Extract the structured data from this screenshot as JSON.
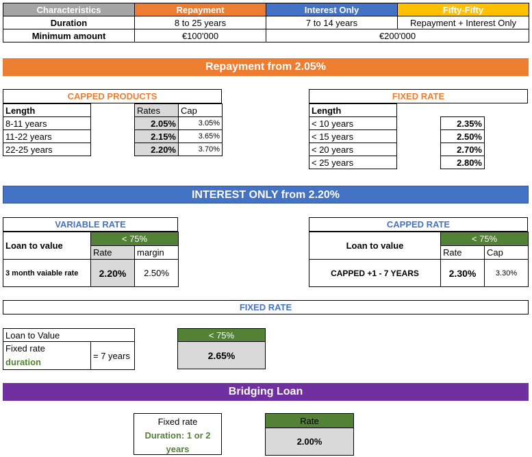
{
  "top_table": {
    "headers": [
      "Characteristics",
      "Repayment",
      "Interest Only",
      "Fifty-Fifty"
    ],
    "duration_label": "Duration",
    "duration_values": [
      "8 to 25 years",
      "7 to 14 years",
      "Repayment + Interest Only"
    ],
    "min_label": "Minimum amount",
    "min_repayment": "€100'000",
    "min_other": "€200'000"
  },
  "repayment_banner": "Repayment from 2.05%",
  "capped_products": {
    "title": "CAPPED PRODUCTS",
    "col_length": "Length",
    "col_rates": "Rates",
    "col_cap": "Cap",
    "rows": [
      {
        "length": "8-11 years",
        "rate": "2.05%",
        "cap": "3.05%"
      },
      {
        "length": "11-22 years",
        "rate": "2.15%",
        "cap": "3.65%"
      },
      {
        "length": "22-25 years",
        "rate": "2.20%",
        "cap": "3.70%"
      }
    ]
  },
  "fixed_rate_repayment": {
    "title": "FIXED RATE",
    "col_length": "Length",
    "rows": [
      {
        "length": "< 10 years",
        "rate": "2.35%"
      },
      {
        "length": "< 15 years",
        "rate": "2.50%"
      },
      {
        "length": "< 20 years",
        "rate": "2.70%"
      },
      {
        "length": "< 25 years",
        "rate": "2.80%"
      }
    ]
  },
  "interest_only_banner": "INTEREST ONLY from 2.20%",
  "variable_rate": {
    "title": "VARIABLE RATE",
    "ltv_label": "Loan to value",
    "band": "< 75%",
    "col_rate": "Rate",
    "col_margin": "margin",
    "row_label": "3 month vaiable rate",
    "rate": "2.20%",
    "margin": "2.50%"
  },
  "capped_rate": {
    "title": "CAPPED RATE",
    "ltv_label": "Loan to value",
    "band": "< 75%",
    "col_rate": "Rate",
    "col_cap": "Cap",
    "row_label": "CAPPED +1 - 7 YEARS",
    "rate": "2.30%",
    "cap": "3.30%"
  },
  "fixed_rate_io": {
    "title": "FIXED RATE",
    "ltv_label": "Loan to Value",
    "fixed_label": "Fixed rate",
    "duration_label": "duration",
    "duration_value": "= 7 years",
    "band": "< 75%",
    "rate": "2.65%"
  },
  "bridging_banner": "Bridging Loan",
  "bridging": {
    "fixed_label": "Fixed rate",
    "duration_label": "Duration: 1 or 2 years",
    "rate_header": "Rate",
    "rate": "2.00%"
  },
  "colors": {
    "repayment": "#ed7d31",
    "interest_only": "#4472c4",
    "fifty_fifty": "#ffc000",
    "characteristics": "#a5a5a5",
    "green": "#538135",
    "bridging": "#7030a0"
  }
}
